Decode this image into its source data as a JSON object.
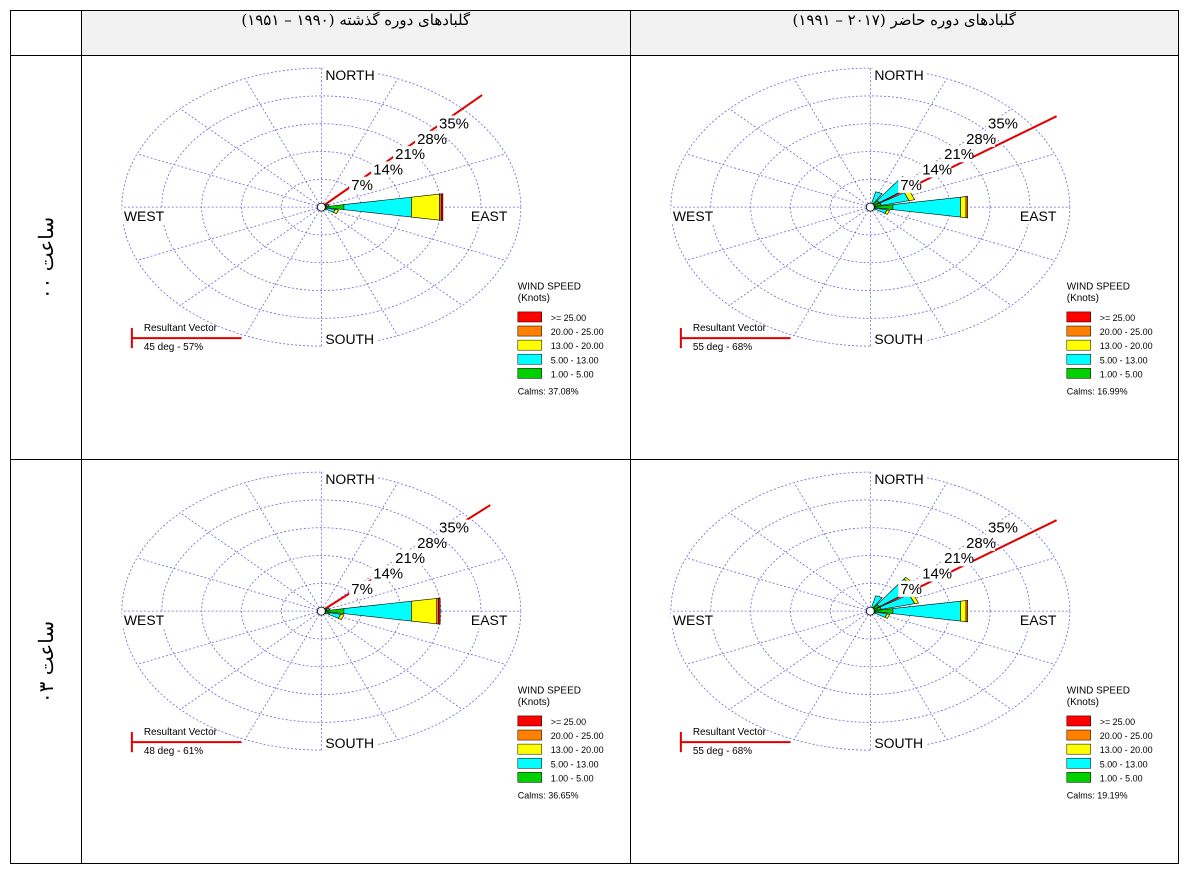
{
  "header": {
    "past": "گلبادهای دوره گذشته (۱۹۹۰ – ۱۹۵۱)",
    "present": "گلبادهای دوره حاضر (۲۰۱۷ – ۱۹۹۱)"
  },
  "rows": [
    {
      "label": "ساعت ۰۰"
    },
    {
      "label": "ساعت ۰۳"
    }
  ],
  "legend": {
    "title_line1": "WIND SPEED",
    "title_line2": "(Knots)",
    "classes": [
      {
        "label": ">= 25.00",
        "color": "#ff0000"
      },
      {
        "label": "20.00 - 25.00",
        "color": "#ff8000"
      },
      {
        "label": "13.00 - 20.00",
        "color": "#ffff00"
      },
      {
        "label": "5.00 - 13.00",
        "color": "#00ffff"
      },
      {
        "label": "1.00 - 5.00",
        "color": "#00d000"
      }
    ]
  },
  "compass": {
    "north": "NORTH",
    "south": "SOUTH",
    "east": "EAST",
    "west": "WEST"
  },
  "resultant_title": "Resultant Vector",
  "chart_data": [
    {
      "type": "windrose",
      "panel": "past-00",
      "ring_labels": [
        "7%",
        "14%",
        "21%",
        "28%",
        "35%"
      ],
      "resultant": {
        "text": "45 deg - 57%",
        "direction_deg": 45
      },
      "calms": "Calms: 37.08%",
      "petals": [
        {
          "dir": 90,
          "segments": [
            4.0,
            12.0,
            5.0,
            0.3,
            0.3
          ]
        },
        {
          "dir": 112.5,
          "segments": [
            1.0,
            1.5,
            0.6,
            0.0,
            0.0
          ]
        },
        {
          "dir": 67.5,
          "segments": [
            1.0,
            0.4,
            0.0,
            0.0,
            0.0
          ]
        },
        {
          "dir": 135,
          "segments": [
            0.6,
            0.3,
            0.0,
            0.0,
            0.0
          ]
        },
        {
          "dir": 22.5,
          "segments": [
            0.4,
            0.0,
            0.0,
            0.0,
            0.0
          ]
        }
      ]
    },
    {
      "type": "windrose",
      "panel": "present-00",
      "ring_labels": [
        "7%",
        "14%",
        "21%",
        "28%",
        "35%"
      ],
      "resultant": {
        "text": "55 deg - 68%",
        "direction_deg": 55
      },
      "calms": "Calms: 16.99%",
      "petals": [
        {
          "dir": 90,
          "segments": [
            4.0,
            12.0,
            1.0,
            0.3,
            0.0
          ]
        },
        {
          "dir": 67.5,
          "segments": [
            2.0,
            5.0,
            1.0,
            0.0,
            0.0
          ]
        },
        {
          "dir": 45,
          "segments": [
            2.0,
            7.0,
            0.6,
            0.0,
            0.0
          ]
        },
        {
          "dir": 22.5,
          "segments": [
            1.0,
            3.0,
            0.0,
            0.0,
            0.0
          ]
        },
        {
          "dir": 112.5,
          "segments": [
            1.0,
            2.0,
            0.5,
            0.0,
            0.0
          ]
        },
        {
          "dir": 0,
          "segments": [
            0.4,
            0.4,
            0.0,
            0.0,
            0.0
          ]
        }
      ]
    },
    {
      "type": "windrose",
      "panel": "past-03",
      "ring_labels": [
        "7%",
        "14%",
        "21%",
        "28%",
        "35%"
      ],
      "resultant": {
        "text": "48 deg - 61%",
        "direction_deg": 48
      },
      "calms": "Calms: 36.65%",
      "petals": [
        {
          "dir": 90,
          "segments": [
            4.0,
            12.0,
            4.5,
            0.3,
            0.3
          ]
        },
        {
          "dir": 112.5,
          "segments": [
            1.5,
            2.0,
            0.6,
            0.0,
            0.0
          ]
        },
        {
          "dir": 67.5,
          "segments": [
            1.0,
            0.5,
            0.0,
            0.0,
            0.0
          ]
        },
        {
          "dir": 135,
          "segments": [
            0.6,
            0.3,
            0.0,
            0.0,
            0.0
          ]
        },
        {
          "dir": 22.5,
          "segments": [
            0.4,
            0.0,
            0.0,
            0.0,
            0.0
          ]
        }
      ]
    },
    {
      "type": "windrose",
      "panel": "present-03",
      "ring_labels": [
        "7%",
        "14%",
        "21%",
        "28%",
        "35%"
      ],
      "resultant": {
        "text": "55 deg - 68%",
        "direction_deg": 55
      },
      "calms": "Calms: 19.19%",
      "petals": [
        {
          "dir": 90,
          "segments": [
            4.0,
            12.0,
            1.0,
            0.3,
            0.0
          ]
        },
        {
          "dir": 67.5,
          "segments": [
            2.0,
            6.0,
            0.7,
            0.0,
            0.0
          ]
        },
        {
          "dir": 45,
          "segments": [
            2.0,
            8.0,
            0.5,
            0.0,
            0.0
          ]
        },
        {
          "dir": 22.5,
          "segments": [
            1.0,
            3.0,
            0.0,
            0.0,
            0.0
          ]
        },
        {
          "dir": 112.5,
          "segments": [
            1.0,
            2.0,
            0.5,
            0.0,
            0.0
          ]
        },
        {
          "dir": 0,
          "segments": [
            0.4,
            0.4,
            0.0,
            0.0,
            0.0
          ]
        }
      ]
    }
  ]
}
